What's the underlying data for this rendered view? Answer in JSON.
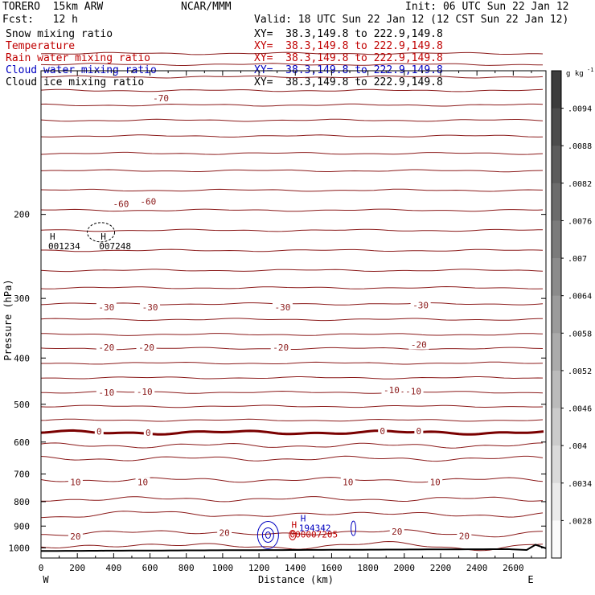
{
  "header": {
    "model": "TORERO  15km ARW",
    "org": "NCAR/MMM",
    "init": "Init: 06 UTC Sun 22 Jan 12",
    "fcst": "Fcst:   12 h",
    "valid": "Valid: 18 UTC Sun 22 Jan 12 (12 CST Sun 22 Jan 12)",
    "fields": [
      {
        "name": "Snow mixing ratio",
        "xy": "XY=  38.3,149.8 to 222.9,149.8",
        "color": "#000000"
      },
      {
        "name": "Temperature",
        "xy": "XY=  38.3,149.8 to 222.9,149.8",
        "color": "#c00000"
      },
      {
        "name": "Rain water mixing ratio",
        "xy": "XY=  38.3,149.8 to 222.9,149.8",
        "color": "#c00000"
      },
      {
        "name": "Cloud water mixing ratio",
        "xy": "XY=  38.3,149.8 to 222.9,149.8",
        "color": "#0000c0"
      },
      {
        "name": "Cloud ice mixing ratio",
        "xy": "XY=  38.3,149.8 to 222.9,149.8",
        "color": "#000000"
      }
    ]
  },
  "chart_data": {
    "type": "contour",
    "xlabel": "Distance (km)",
    "ylabel": "Pressure (hPa)",
    "xlim": [
      0,
      2780
    ],
    "ylim": [
      1050,
      100
    ],
    "y_scale": "log-pressure",
    "x_ticks": [
      0,
      200,
      400,
      600,
      800,
      1000,
      1200,
      1400,
      1600,
      1800,
      2000,
      2200,
      2400,
      2600
    ],
    "y_ticks": [
      200,
      300,
      400,
      500,
      600,
      700,
      800,
      900,
      1000
    ],
    "x_end_labels": {
      "left": "W",
      "right": "E"
    },
    "temperature_contour_labels": [
      {
        "text": "-70",
        "x": 660,
        "p": 114
      },
      {
        "text": "-60",
        "x": 440,
        "p": 190
      },
      {
        "text": "-60",
        "x": 590,
        "p": 188
      },
      {
        "text": "-30",
        "x": 360,
        "p": 313
      },
      {
        "text": "-30",
        "x": 600,
        "p": 313
      },
      {
        "text": "-30",
        "x": 1330,
        "p": 313
      },
      {
        "text": "-30",
        "x": 2090,
        "p": 310
      },
      {
        "text": "-20",
        "x": 360,
        "p": 380
      },
      {
        "text": "-20",
        "x": 580,
        "p": 380
      },
      {
        "text": "-20",
        "x": 1320,
        "p": 380
      },
      {
        "text": "-20",
        "x": 2080,
        "p": 375
      },
      {
        "text": "-10",
        "x": 360,
        "p": 472
      },
      {
        "text": "-10",
        "x": 570,
        "p": 470
      },
      {
        "text": "-10",
        "x": 1930,
        "p": 467
      },
      {
        "text": "-10",
        "x": 2050,
        "p": 469
      },
      {
        "text": "0",
        "x": 320,
        "p": 570
      },
      {
        "text": "0",
        "x": 590,
        "p": 573
      },
      {
        "text": "0",
        "x": 1880,
        "p": 569
      },
      {
        "text": "0",
        "x": 2080,
        "p": 569
      },
      {
        "text": "10",
        "x": 190,
        "p": 728
      },
      {
        "text": "10",
        "x": 560,
        "p": 728
      },
      {
        "text": "10",
        "x": 1690,
        "p": 728
      },
      {
        "text": "10",
        "x": 2170,
        "p": 728
      },
      {
        "text": "20",
        "x": 190,
        "p": 945
      },
      {
        "text": "20",
        "x": 1010,
        "p": 930
      },
      {
        "text": "20",
        "x": 1960,
        "p": 924
      },
      {
        "text": "20",
        "x": 2330,
        "p": 944
      }
    ],
    "extrema": [
      {
        "marker": "H",
        "value": "001234",
        "x": 40,
        "p": 235,
        "color": "#000000"
      },
      {
        "marker": "H",
        "value": "007248",
        "x": 320,
        "p": 235,
        "color": "#000000"
      },
      {
        "marker": "H",
        "value": "194342",
        "x": 1420,
        "p": 914,
        "color": "#0000c0"
      },
      {
        "marker": "H",
        "value": "000007205",
        "x": 1370,
        "p": 944,
        "color": "#c00000"
      }
    ],
    "colorbar": {
      "units": "g kg",
      "units_exp": "-1",
      "labels": [
        ".0094",
        ".0088",
        ".0082",
        ".0076",
        ".007",
        ".0064",
        ".0058",
        ".0052",
        ".0046",
        ".004",
        ".0034",
        ".0028"
      ]
    }
  }
}
